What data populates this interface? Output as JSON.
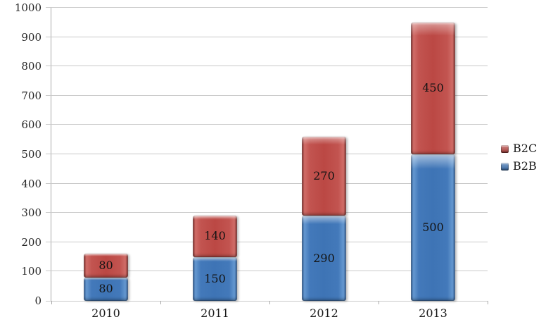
{
  "chart_data": {
    "type": "bar",
    "stacked": true,
    "title": "",
    "categories": [
      "2010",
      "2011",
      "2012",
      "2013"
    ],
    "series": [
      {
        "name": "B2B",
        "color": "#3E74B5",
        "values": [
          80,
          150,
          290,
          500
        ]
      },
      {
        "name": "B2C",
        "color": "#BB4844",
        "values": [
          80,
          140,
          270,
          450
        ]
      }
    ],
    "totals": [
      160,
      290,
      560,
      950
    ],
    "ylim": [
      0,
      1000
    ],
    "ytick_step": 100,
    "yticks": [
      "0",
      "100",
      "200",
      "300",
      "400",
      "500",
      "600",
      "700",
      "800",
      "900",
      "1000"
    ],
    "grid": true,
    "data_labels": true,
    "legend": {
      "position": "right",
      "entries": [
        {
          "label": "B2C",
          "color": "#BB4844",
          "series_index": 1
        },
        {
          "label": "B2B",
          "color": "#3E74B5",
          "series_index": 0
        }
      ]
    }
  },
  "colors": {
    "background": "#FFFFFF",
    "gridline": "#C9C9C9",
    "axis_line": "#A8A8A8",
    "text": "#1A1A1A"
  }
}
